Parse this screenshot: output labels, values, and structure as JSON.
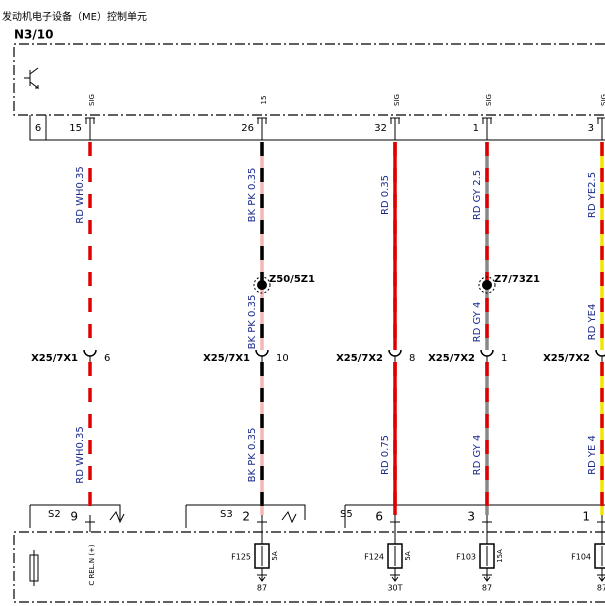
{
  "header": {
    "title": "发动机电子设备（ME）控制单元",
    "unit": "N3/10"
  },
  "top_connector": "6",
  "columns": [
    {
      "pin": "15",
      "signal": "SIG",
      "colors": [
        "#e00000",
        "#ffffff"
      ],
      "wire_top": "RD WH0.35",
      "connector": {
        "name": "X25/7X1",
        "pin": "6"
      },
      "wire_bottom": "RD WH0.35",
      "bottom": {
        "connector": "S2",
        "pin": "9"
      },
      "fuse_label": "C REL.N (+)"
    },
    {
      "pin": "26",
      "signal": "15",
      "colors": [
        "#000000",
        "#f4b6b6"
      ],
      "wire_top": "BK PK 0.35",
      "splice": "Z50/5Z1",
      "wire_mid": "BK PK 0.35",
      "connector": {
        "name": "X25/7X1",
        "pin": "10"
      },
      "wire_bottom": "BK PK 0.35",
      "bottom": {
        "connector": "S3",
        "pin": "2"
      },
      "fuse": {
        "name": "F125",
        "rating": "5A",
        "terminal": "87"
      }
    },
    {
      "pin": "32",
      "signal": "SIG",
      "colors": [
        "#e00000",
        "#e00000"
      ],
      "wire_top": "RD 0.35",
      "connector": {
        "name": "X25/7X2",
        "pin": "8"
      },
      "wire_bottom": "RD 0.75",
      "bottom": {
        "connector": "S5",
        "pin": "6"
      },
      "fuse": {
        "name": "F124",
        "rating": "5A",
        "terminal": "30T"
      }
    },
    {
      "pin": "1",
      "signal": "SIG",
      "colors": [
        "#e00000",
        "#888888"
      ],
      "wire_top": "RD GY 2.5",
      "splice": "Z7/73Z1",
      "wire_mid": "RD GY 4",
      "connector": {
        "name": "X25/7X2",
        "pin": "1"
      },
      "wire_bottom": "RD GY 4",
      "bottom": {
        "pin": "3"
      },
      "fuse": {
        "name": "F103",
        "rating": "15A",
        "terminal": "87"
      }
    },
    {
      "pin": "3",
      "signal": "SIG",
      "colors": [
        "#e00000",
        "#f2e600"
      ],
      "wire_top": "RD YE2.5",
      "wire_mid": "RD YE4",
      "connector": {
        "name": "X25/7X2"
      },
      "wire_bottom": "RD YE 4",
      "bottom": {
        "pin": "1"
      },
      "fuse": {
        "name": "F104",
        "terminal": "87"
      }
    }
  ]
}
